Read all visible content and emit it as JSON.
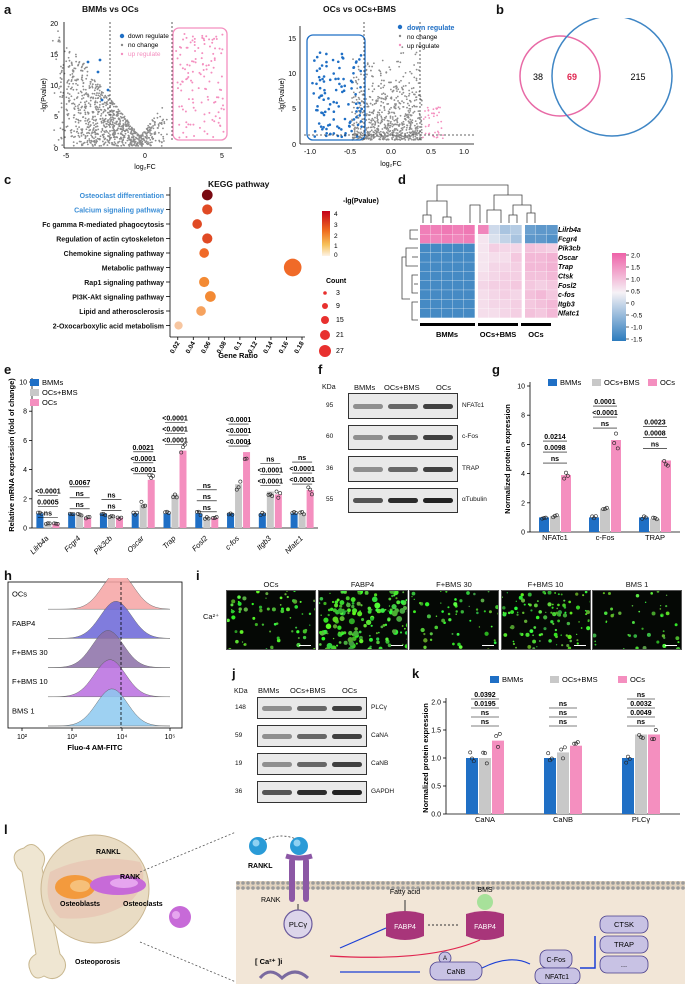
{
  "panels": {
    "a": {
      "label": "a",
      "left": {
        "title": "BMMs vs OCs",
        "xlabel": "log₂FC",
        "ylabel": "-lg(Pvalue)",
        "xticks": [
          "-5",
          "0",
          "5"
        ],
        "yticks": [
          "0",
          "5",
          "10",
          "15",
          "20"
        ],
        "legend": [
          "down regulate",
          "no change",
          "up regulate"
        ]
      },
      "right": {
        "title": "OCs vs OCs+BMS",
        "xlabel": "log₂FC",
        "ylabel": "-lg(Pvalue)",
        "xticks": [
          "-1.0",
          "-0.5",
          "0.0",
          "0.5",
          "1.0"
        ],
        "yticks": [
          "0",
          "5",
          "10",
          "15"
        ],
        "legend": [
          "down regulate",
          "no change",
          "up regulate"
        ]
      }
    },
    "b": {
      "label": "b",
      "left_only": "38",
      "overlap": "69",
      "right_only": "215"
    },
    "c": {
      "label": "c",
      "title": "KEGG pathway",
      "xlabel": "Gene Ratio",
      "xticks": [
        "0.02",
        "0.04",
        "0.06",
        "0.08",
        "0.1",
        "0.12",
        "0.14",
        "0.16",
        "0.18"
      ],
      "pathways": [
        "Osteoclast differentiation",
        "Calcium signaling pathway",
        "Fc gamma R-mediated phagocytosis",
        "Regulation of actin cytoskeleton",
        "Chemokine signaling pathway",
        "Metabolic pathway",
        "Rap1 signaling pathway",
        "PI3K-Akt signaling pathway",
        "Lipid and atherosclerosis",
        "2-Oxocarboxylic acid metabolism"
      ],
      "color_title": "-lg(Pvalue)",
      "color_ticks": [
        "4",
        "3",
        "2",
        "1",
        "0"
      ],
      "count_title": "Count",
      "count_ticks": [
        "3",
        "9",
        "15",
        "21",
        "27"
      ]
    },
    "d": {
      "label": "d",
      "genes": [
        "Lilrb4a",
        "Fcgr4",
        "Pik3cb",
        "Oscar",
        "Trap",
        "Ctsk",
        "Fosl2",
        "c-fos",
        "Itgb3",
        "Nfatc1"
      ],
      "groups": [
        "BMMs",
        "OCs+BMS",
        "OCs"
      ],
      "scale_ticks": [
        "2.0",
        "1.5",
        "1.0",
        "0.5",
        "0",
        "-0.5",
        "-1.0",
        "-1.5"
      ]
    },
    "e": {
      "label": "e",
      "ylabel": "Relative mRNA expression (fold of change)",
      "legend": [
        "BMMs",
        "OCs+BMS",
        "OCs"
      ],
      "yticks": [
        "0",
        "2",
        "4",
        "6",
        "8",
        "10"
      ],
      "genes": [
        "Lilrb4a",
        "Fcgr4",
        "Pik3cb",
        "Oscar",
        "Trap",
        "Fosl2",
        "c-fos",
        "Itgb3",
        "Nfatc1"
      ],
      "stats": {
        "Lilrb4a": [
          "ns",
          "0.0005",
          "<0.0001"
        ],
        "Fcgr4": [
          "ns",
          "ns",
          "0.0067"
        ],
        "Pik3cb": [
          "ns",
          "ns"
        ],
        "Oscar": [
          "<0.0001",
          "<0.0001",
          "0.0021"
        ],
        "Trap": [
          "<0.0001",
          "<0.0001",
          "<0.0001"
        ],
        "Fosl2": [
          "ns",
          "ns",
          "ns"
        ],
        "c-fos": [
          "<0.0001",
          "<0.0001",
          "<0.0001"
        ],
        "Itgb3": [
          "<0.0001",
          "<0.0001",
          "ns"
        ],
        "Nfatc1": [
          "<0.0001",
          "<0.0001",
          "ns"
        ]
      }
    },
    "f": {
      "label": "f",
      "kda": "KDa",
      "groups": [
        "BMMs",
        "OCs+BMS",
        "OCs"
      ],
      "rows": [
        {
          "mw": "95",
          "name": "NFATc1"
        },
        {
          "mw": "60",
          "name": "c-Fos"
        },
        {
          "mw": "36",
          "name": "TRAP"
        },
        {
          "mw": "55",
          "name": "αTubulin"
        }
      ]
    },
    "g": {
      "label": "g",
      "ylabel": "Normalized protein expression",
      "legend": [
        "BMMs",
        "OCs+BMS",
        "OCs"
      ],
      "yticks": [
        "0",
        "2",
        "4",
        "6",
        "8",
        "10"
      ],
      "categories": [
        "NFATc1",
        "c-Fos",
        "TRAP"
      ],
      "stats": {
        "NFATc1": [
          "0.0214",
          "0.0098",
          "ns"
        ],
        "c-Fos": [
          "0.0001",
          "<0.0001",
          "ns"
        ],
        "TRAP": [
          "0.0023",
          "0.0008",
          "ns"
        ]
      }
    },
    "h": {
      "label": "h",
      "xlabel": "Fluo-4 AM-FITC",
      "xticks": [
        "10²",
        "10³",
        "10⁴",
        "10⁵"
      ],
      "rows": [
        "OCs",
        "FABP4",
        "F+BMS 30",
        "F+BMS 10",
        "BMS 1"
      ]
    },
    "i": {
      "label": "i",
      "row_label": "Ca²⁺",
      "columns": [
        "OCs",
        "FABP4",
        "F+BMS 30",
        "F+BMS 10",
        "BMS 1"
      ]
    },
    "j": {
      "label": "j",
      "kda": "KDa",
      "groups": [
        "BMMs",
        "OCs+BMS",
        "OCs"
      ],
      "rows": [
        {
          "mw": "148",
          "name": "PLCγ"
        },
        {
          "mw": "59",
          "name": "CaNA"
        },
        {
          "mw": "19",
          "name": "CaNB"
        },
        {
          "mw": "36",
          "name": "GAPDH"
        }
      ]
    },
    "k": {
      "label": "k",
      "ylabel": "Normalized protein expression",
      "legend": [
        "BMMs",
        "OCs+BMS",
        "OCs"
      ],
      "yticks": [
        "0.0",
        "0.5",
        "1.0",
        "1.5",
        "2.0"
      ],
      "categories": [
        "CaNA",
        "CaNB",
        "PLCγ"
      ],
      "stats": {
        "CaNA": [
          "0.0392",
          "0.0195",
          "ns",
          "ns"
        ],
        "CaNB": [
          "ns",
          "ns",
          "ns"
        ],
        "PLCγ": [
          "ns",
          "0.0032",
          "0.0049",
          "ns"
        ]
      }
    },
    "l": {
      "label": "l",
      "ligand": "RANKL",
      "receptor": "RANK",
      "bone_labels": [
        "RANKL",
        "RANK",
        "Osteoblasts",
        "Osteoclasts",
        "Osteoporosis"
      ],
      "plcg": "PLCγ",
      "ca": "[ Ca²⁺ ]i",
      "fatty_acid": "Fatty acid",
      "bms": "BMS",
      "fabp4": "FABP4",
      "a": "A",
      "canb": "CaNB",
      "cfos": "C-Fos",
      "nfatc1": "NFATc1",
      "targets": [
        "CTSK",
        "TRAP",
        "..."
      ]
    }
  },
  "colors": {
    "bmm": "#1f6fc5",
    "bms": "#c8c8c8",
    "ocs": "#f48fbf",
    "down": "#1f6fc5",
    "up": "#f48fbf"
  },
  "chart_data": [
    {
      "id": "e",
      "type": "bar",
      "title": "",
      "ylabel": "Relative mRNA expression (fold of change)",
      "ylim": [
        0,
        10
      ],
      "categories": [
        "Lilrb4a",
        "Fcgr4",
        "Pik3cb",
        "Oscar",
        "Trap",
        "Fosl2",
        "c-fos",
        "Itgb3",
        "Nfatc1"
      ],
      "series": [
        {
          "name": "BMMs",
          "values": [
            1.0,
            1.0,
            1.0,
            1.0,
            1.0,
            1.0,
            1.0,
            1.0,
            1.0
          ]
        },
        {
          "name": "OCs+BMS",
          "values": [
            0.3,
            0.9,
            0.8,
            1.6,
            2.3,
            0.7,
            3.0,
            2.5,
            1.0
          ]
        },
        {
          "name": "OCs",
          "values": [
            0.3,
            0.7,
            0.7,
            3.3,
            5.3,
            0.7,
            5.2,
            2.3,
            2.6
          ]
        }
      ]
    },
    {
      "id": "g",
      "type": "bar",
      "ylabel": "Normalized protein expression",
      "ylim": [
        0,
        10
      ],
      "categories": [
        "NFATc1",
        "c-Fos",
        "TRAP"
      ],
      "series": [
        {
          "name": "BMMs",
          "values": [
            1.0,
            1.0,
            1.0
          ]
        },
        {
          "name": "OCs+BMS",
          "values": [
            1.1,
            1.6,
            0.9
          ]
        },
        {
          "name": "OCs",
          "values": [
            3.9,
            6.3,
            4.9
          ]
        }
      ]
    },
    {
      "id": "k",
      "type": "bar",
      "ylabel": "Normalized protein expression",
      "ylim": [
        0,
        2.0
      ],
      "categories": [
        "CaNA",
        "CaNB",
        "PLCγ"
      ],
      "series": [
        {
          "name": "BMMs",
          "values": [
            1.0,
            1.0,
            1.0
          ]
        },
        {
          "name": "OCs+BMS",
          "values": [
            1.0,
            1.1,
            1.42
          ]
        },
        {
          "name": "OCs",
          "values": [
            1.31,
            1.22,
            1.42
          ]
        }
      ]
    },
    {
      "id": "c",
      "type": "scatter",
      "title": "KEGG pathway",
      "xlabel": "Gene Ratio",
      "xlim": [
        0.02,
        0.18
      ],
      "categories": [
        "Osteoclast differentiation",
        "Calcium signaling pathway",
        "Fc gamma R-mediated phagocytosis",
        "Regulation of actin cytoskeleton",
        "Chemokine signaling pathway",
        "Metabolic pathway",
        "Rap1 signaling pathway",
        "PI3K-Akt signaling pathway",
        "Lipid and atherosclerosis",
        "2-Oxocarboxylic acid metabolism"
      ],
      "x": [
        0.058,
        0.058,
        0.045,
        0.058,
        0.054,
        0.168,
        0.054,
        0.062,
        0.05,
        0.021
      ],
      "count": [
        7,
        6,
        5,
        6,
        5,
        27,
        6,
        7,
        5,
        3
      ],
      "neglogp": [
        4.3,
        2.6,
        2.4,
        2.4,
        1.9,
        1.8,
        1.4,
        1.3,
        1.0,
        0.4
      ]
    }
  ]
}
